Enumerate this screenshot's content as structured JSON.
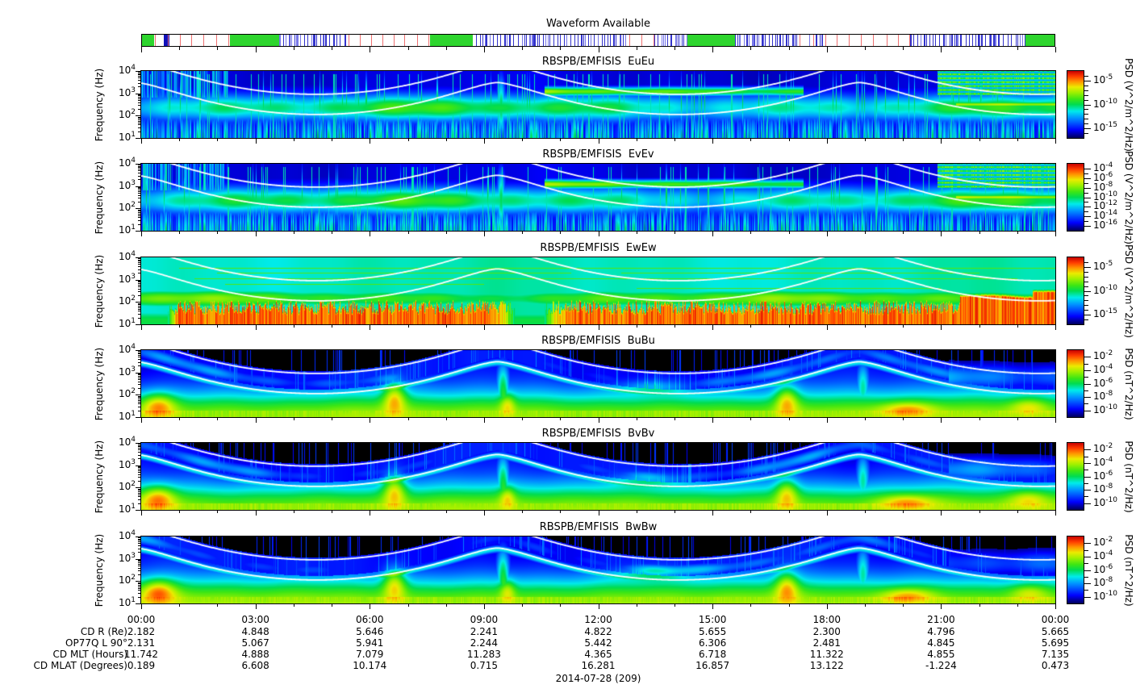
{
  "chart_data": {
    "type": "heatmap",
    "figure_title": "Waveform Available",
    "date_label": "2014-07-28 (209)",
    "x_axis": {
      "tick_labels": [
        "00:00",
        "03:00",
        "06:00",
        "09:00",
        "12:00",
        "15:00",
        "18:00",
        "21:00",
        "00:00"
      ],
      "major_tick_hours": 3,
      "minor_tick_hours": 1,
      "hours_span": 24
    },
    "y_axis": {
      "label": "Frequency (Hz)",
      "scale": "log",
      "decade_exponents": [
        4,
        3,
        2,
        1
      ]
    },
    "waveform_bar": {
      "green_blocks": [
        [
          0.0,
          0.013
        ],
        [
          0.096,
          0.15
        ],
        [
          0.315,
          0.362
        ],
        [
          0.596,
          0.649
        ],
        [
          0.966,
          1.0
        ]
      ],
      "blue_blocks": [
        [
          0.024,
          0.03
        ]
      ],
      "blue_clusters": [
        [
          0.15,
          0.225
        ],
        [
          0.365,
          0.53
        ],
        [
          0.56,
          0.596
        ],
        [
          0.649,
          0.72
        ],
        [
          0.73,
          0.745
        ],
        [
          0.84,
          0.966
        ]
      ],
      "red_line_ranges": [
        [
          0.015,
          0.095
        ],
        [
          0.225,
          0.312
        ],
        [
          0.533,
          0.558
        ],
        [
          0.72,
          0.84
        ]
      ],
      "colors": {
        "green": "#2ed52e",
        "blue_dark": "#1111bb",
        "blue": "#3333cc",
        "blue_light": "#7777e8",
        "red": "#ee7070"
      }
    },
    "panels": [
      {
        "title": "RBSPB/EMFISIS  EuEu",
        "style": "E",
        "seed": 11,
        "colorbar": {
          "unit": "PSD (V^2/m^2/Hz)",
          "range_exp": [
            -3,
            -17
          ],
          "labeled_exp": [
            -5,
            -10,
            -15
          ]
        }
      },
      {
        "title": "RBSPB/EMFISIS  EvEv",
        "style": "E",
        "seed": 23,
        "colorbar": {
          "unit": "PSD (V^2/m^2/Hz)",
          "range_exp": [
            -3,
            -17
          ],
          "labeled_exp": [
            -4,
            -6,
            -8,
            -10,
            -12,
            -14,
            -16
          ]
        }
      },
      {
        "title": "RBSPB/EMFISIS  EwEw",
        "style": "Ew",
        "seed": 37,
        "colorbar": {
          "unit": "PSD (V^2/m^2/Hz)",
          "range_exp": [
            -3,
            -17
          ],
          "labeled_exp": [
            -5,
            -10,
            -15
          ]
        }
      },
      {
        "title": "RBSPB/EMFISIS  BuBu",
        "style": "B",
        "seed": 51,
        "colorbar": {
          "unit": "PSD (nT^2/Hz)",
          "range_exp": [
            -1,
            -11
          ],
          "labeled_exp": [
            -2,
            -4,
            -6,
            -8,
            -10
          ]
        }
      },
      {
        "title": "RBSPB/EMFISIS  BvBv",
        "style": "B",
        "seed": 67,
        "colorbar": {
          "unit": "PSD (nT^2/Hz)",
          "range_exp": [
            -1,
            -11
          ],
          "labeled_exp": [
            -2,
            -4,
            -6,
            -8,
            -10
          ]
        }
      },
      {
        "title": "RBSPB/EMFISIS  BwBw",
        "style": "B",
        "seed": 83,
        "colorbar": {
          "unit": "PSD (nT^2/Hz)",
          "range_exp": [
            -1,
            -11
          ],
          "labeled_exp": [
            -2,
            -4,
            -6,
            -8,
            -10
          ]
        }
      }
    ],
    "ephemeris": {
      "row_labels": [
        "CD R (Re)",
        "OP77Q L 90°",
        "CD MLT (Hours)",
        "CD MLAT (Degrees)"
      ],
      "columns": [
        "00:00",
        "03:00",
        "06:00",
        "09:00",
        "12:00",
        "15:00",
        "18:00",
        "21:00",
        "00:00"
      ],
      "rows": [
        [
          "2.182",
          "4.848",
          "5.646",
          "2.241",
          "4.822",
          "5.655",
          "2.300",
          "4.796",
          "5.665"
        ],
        [
          "2.131",
          "5.067",
          "5.941",
          "2.244",
          "5.442",
          "6.306",
          "2.481",
          "4.845",
          "5.695"
        ],
        [
          "11.742",
          "4.888",
          "7.079",
          "11.283",
          "4.365",
          "6.718",
          "11.322",
          "4.855",
          "7.135"
        ],
        [
          "0.189",
          "6.608",
          "10.174",
          "0.715",
          "16.281",
          "16.857",
          "13.122",
          "-1.224",
          "0.473"
        ]
      ]
    }
  }
}
